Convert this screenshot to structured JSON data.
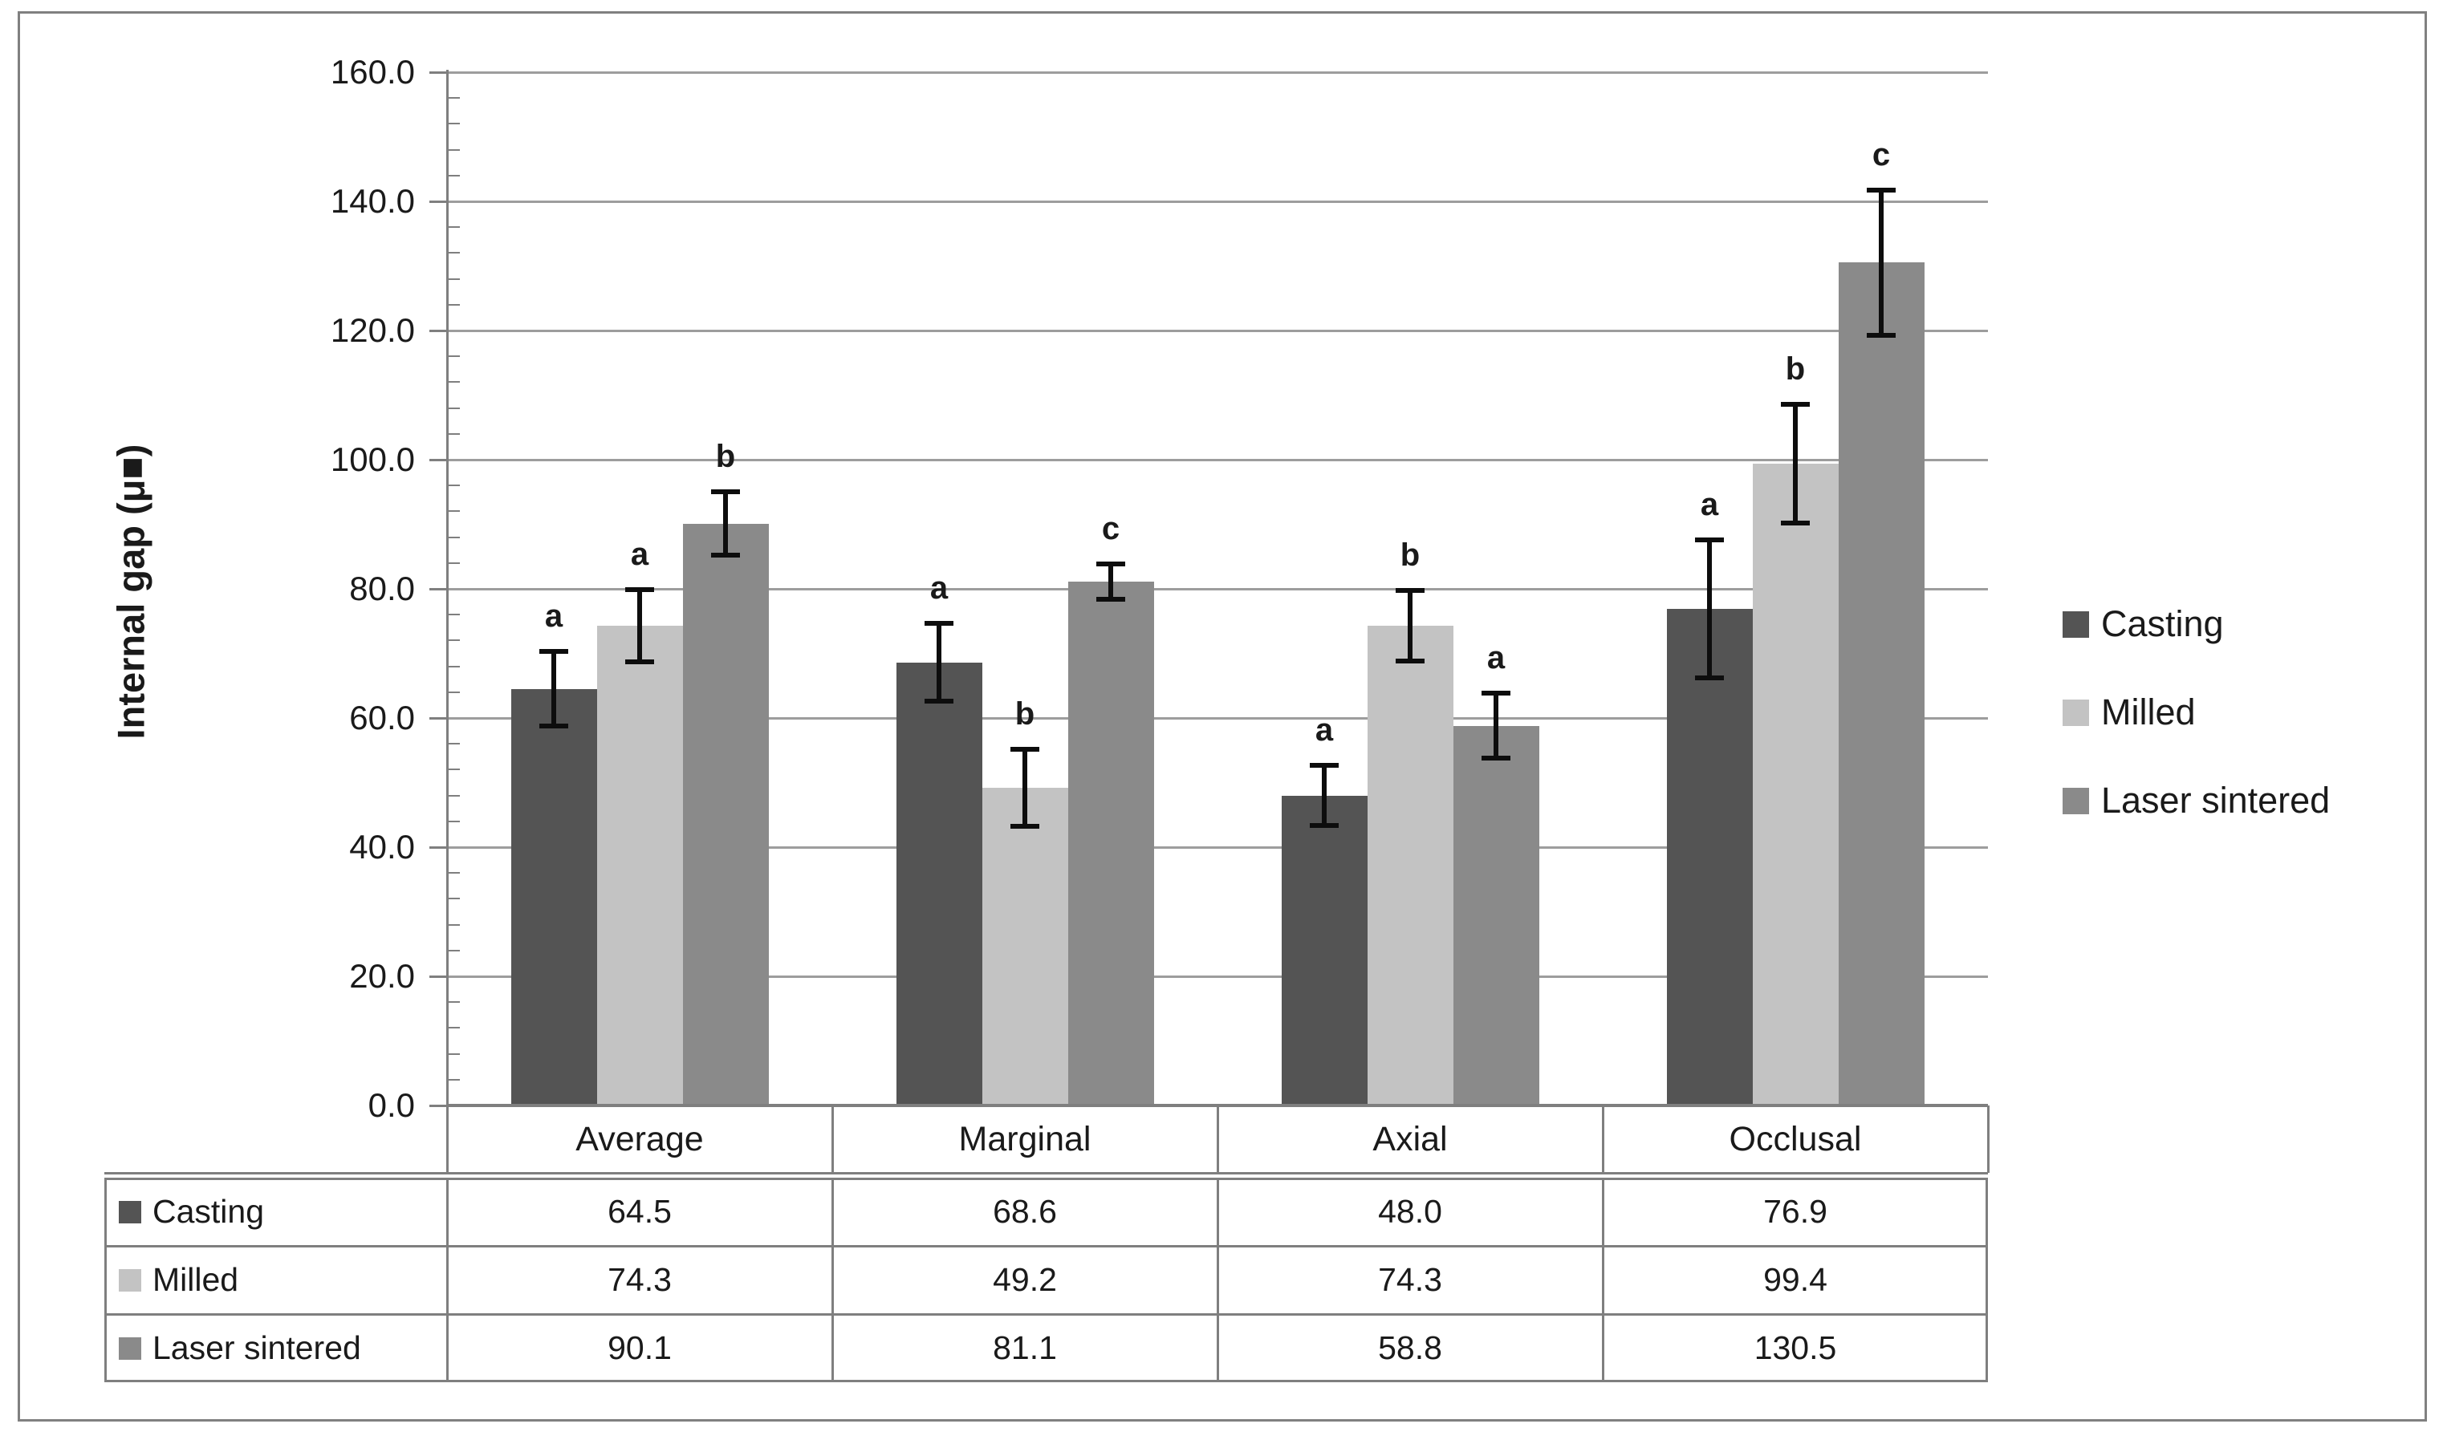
{
  "chart_data": {
    "type": "bar",
    "title": "",
    "y_axis_title": "Internal gap (μ■)",
    "xlabel": "",
    "ylim": [
      0,
      160
    ],
    "ytick_step": 20,
    "ytick_labels": [
      "0.0",
      "20.0",
      "40.0",
      "60.0",
      "80.0",
      "100.0",
      "120.0",
      "140.0",
      "160.0"
    ],
    "grid": true,
    "categories": [
      "Average",
      "Marginal",
      "Axial",
      "Occlusal"
    ],
    "series": [
      {
        "name": "Casting",
        "values": [
          64.5,
          68.6,
          48.0,
          76.9
        ],
        "errors": [
          5.8,
          6.0,
          4.7,
          10.7
        ],
        "letters": [
          "a",
          "a",
          "a",
          "a"
        ]
      },
      {
        "name": "Milled",
        "values": [
          74.3,
          49.2,
          74.3,
          99.4
        ],
        "errors": [
          5.6,
          6.0,
          5.5,
          9.2
        ],
        "letters": [
          "a",
          "b",
          "b",
          "b"
        ]
      },
      {
        "name": "Laser sintered",
        "values": [
          90.1,
          81.1,
          58.8,
          130.5
        ],
        "errors": [
          4.9,
          2.7,
          5.0,
          11.2
        ],
        "letters": [
          "b",
          "c",
          "a",
          "c"
        ]
      }
    ],
    "legend": {
      "position": "right",
      "items": [
        "Casting",
        "Milled",
        "Laser sintered"
      ]
    },
    "data_table": {
      "column_headers": [
        "Average",
        "Marginal",
        "Axial",
        "Occlusal"
      ],
      "row_headers": [
        "Casting",
        "Milled",
        "Laser sintered"
      ],
      "rows": [
        [
          "64.5",
          "68.6",
          "48.0",
          "76.9"
        ],
        [
          "74.3",
          "49.2",
          "74.3",
          "99.4"
        ],
        [
          "90.1",
          "81.1",
          "58.8",
          "130.5"
        ]
      ]
    }
  },
  "colors": {
    "casting": "#545454",
    "milled": "#c3c3c3",
    "laser_sintered": "#8a8a8a",
    "gridline": "#9d9d9d",
    "axis": "#7f7f7f",
    "error_bar": "#0d0d0d",
    "text": "#1a1a1a",
    "background": "#ffffff"
  }
}
